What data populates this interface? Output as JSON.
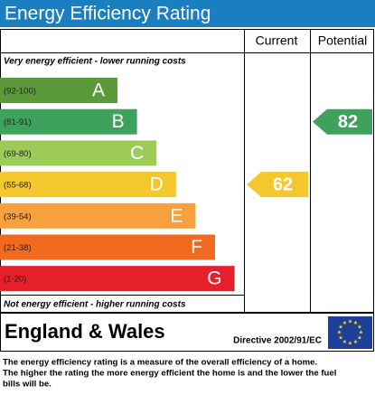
{
  "title": "Energy Efficiency Rating",
  "header": {
    "current": "Current",
    "potential": "Potential"
  },
  "top_note": "Very energy efficient - lower running costs",
  "bands": [
    {
      "range": "(92-100)",
      "letter": "A",
      "color": "#5a9a3a"
    },
    {
      "range": "(81-91)",
      "letter": "B",
      "color": "#3fa25c"
    },
    {
      "range": "(69-80)",
      "letter": "C",
      "color": "#9ccb58"
    },
    {
      "range": "(55-68)",
      "letter": "D",
      "color": "#f4c72c"
    },
    {
      "range": "(39-54)",
      "letter": "E",
      "color": "#f6a03e"
    },
    {
      "range": "(21-38)",
      "letter": "F",
      "color": "#f06b1f"
    },
    {
      "range": "(1-20)",
      "letter": "G",
      "color": "#e6202a"
    }
  ],
  "bottom_note": "Not energy efficient - higher running costs",
  "current": {
    "value": 62,
    "color": "#f4c72c"
  },
  "potential": {
    "value": 82,
    "color": "#3fa25c"
  },
  "footer": {
    "region": "England & Wales",
    "directive": "Directive 2002/91/EC"
  },
  "description": [
    "The energy efficiency rating is a measure of the overall efficiency of a home.",
    "The higher the rating the more energy efficient the home is and the lower the fuel",
    "bills will be."
  ]
}
